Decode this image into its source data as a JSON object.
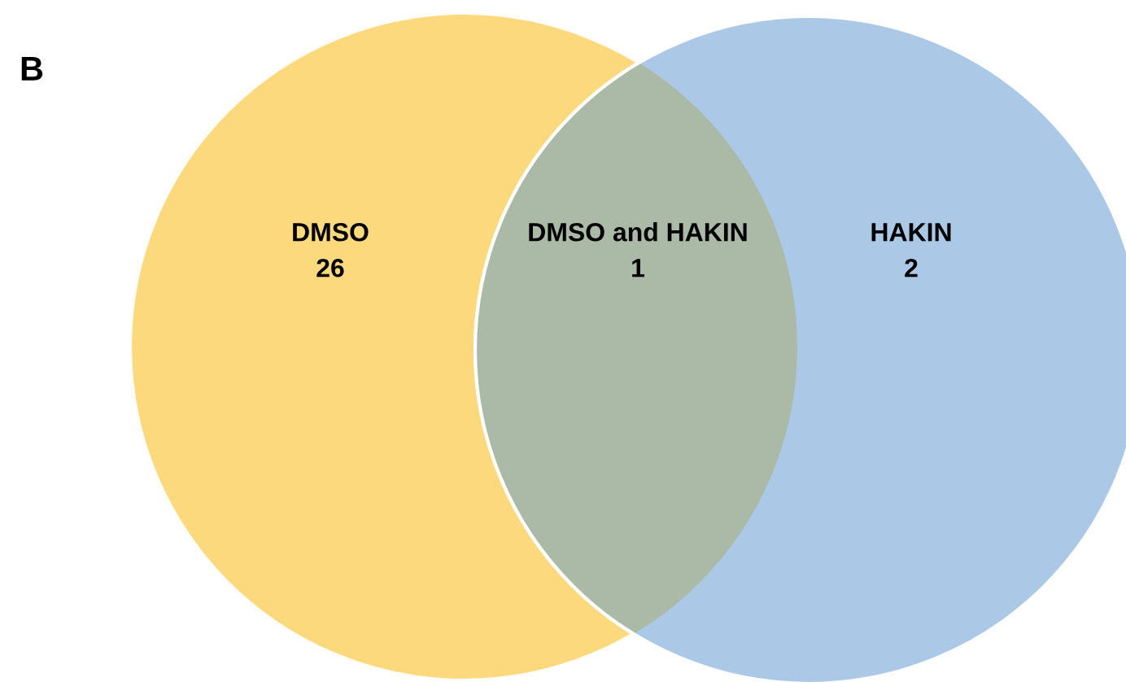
{
  "chart_data": {
    "type": "other",
    "categories": [
      "DMSO",
      "DMSO and HAKIN",
      "HAKIN"
    ],
    "values": [
      26,
      1,
      2
    ],
    "colors": [
      "#fdd97d",
      "#abbaa7",
      "#abc9e7"
    ],
    "data_labels": true,
    "annotations": [
      "B"
    ]
  }
}
